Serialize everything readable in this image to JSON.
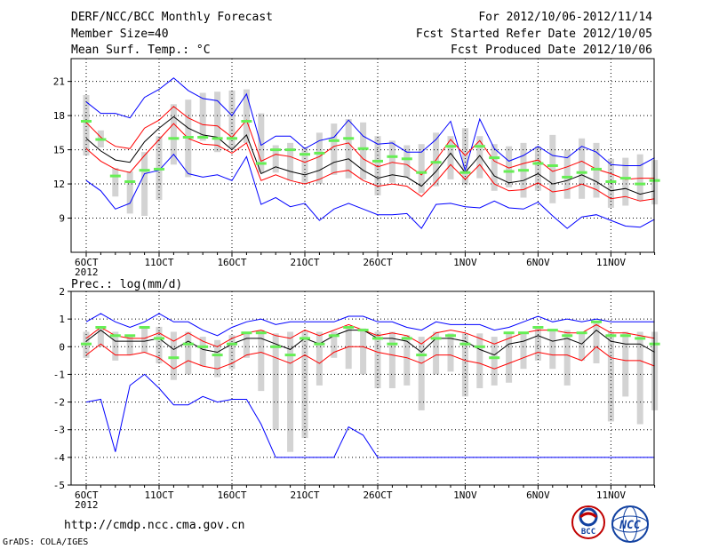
{
  "header": {
    "title": "DERF/NCC/BCC Monthly Forecast",
    "member_size": "Member Size=40",
    "variable": "Mean Surf. Temp.: °C",
    "forecast_period": "For 2012/10/06-2012/11/14",
    "fcst_started": "Fcst Started Refer Date 2012/10/05",
    "fcst_produced": "Fcst Produced Date 2012/10/06"
  },
  "footer": {
    "url": "http://cmdp.ncc.cma.gov.cn",
    "grads_credit": "GrADS: COLA/IGES",
    "logo_bcc": "BCC",
    "logo_ncc": "NCC"
  },
  "colors": {
    "ensemble_mean": "#000000",
    "spread_band": "#ff0000",
    "min_max": "#0000ff",
    "observed_box": "#d3d3d3",
    "median_marker": "#66ee55"
  },
  "chart_data": [
    {
      "type": "line",
      "title": "Mean Surf. Temp.: °C",
      "ylabel": "°C",
      "ylim": [
        6,
        23
      ],
      "yticks": [
        9,
        12,
        15,
        18,
        21
      ],
      "x": [
        1,
        2,
        3,
        4,
        5,
        6,
        7,
        8,
        9,
        10,
        11,
        12,
        13,
        14,
        15,
        16,
        17,
        18,
        19,
        20,
        21,
        22,
        23,
        24,
        25,
        26,
        27,
        28,
        29,
        30,
        31,
        32,
        33,
        34,
        35,
        36,
        37,
        38,
        39,
        40
      ],
      "xtick_labels": [
        {
          "day": 1,
          "label": "6OCT",
          "sub": "2012"
        },
        {
          "day": 6,
          "label": "11OCT"
        },
        {
          "day": 11,
          "label": "16OCT"
        },
        {
          "day": 16,
          "label": "21OCT"
        },
        {
          "day": 21,
          "label": "26OCT"
        },
        {
          "day": 27,
          "label": "1NOV"
        },
        {
          "day": 32,
          "label": "6NOV"
        },
        {
          "day": 37,
          "label": "11NOV"
        }
      ],
      "series": [
        {
          "name": "max",
          "values": [
            19.2,
            18.2,
            18.2,
            17.8,
            19.6,
            20.3,
            21.3,
            20.2,
            19.5,
            19.3,
            18.0,
            19.9,
            15.4,
            16.2,
            16.2,
            15.1,
            15.8,
            16.1,
            17.6,
            16.2,
            15.5,
            15.6,
            14.8,
            14.8,
            15.9,
            17.5,
            13.2,
            17.7,
            15.1,
            14.0,
            14.5,
            15.3,
            14.5,
            14.3,
            15.3,
            14.8,
            13.7,
            13.6,
            13.6,
            14.3
          ]
        },
        {
          "name": "upper",
          "values": [
            17.4,
            16.1,
            15.3,
            15.1,
            16.9,
            17.6,
            18.8,
            17.8,
            17.2,
            17.1,
            16.1,
            17.6,
            14.0,
            14.6,
            14.4,
            13.9,
            14.4,
            15.3,
            15.6,
            14.2,
            13.5,
            13.9,
            13.7,
            12.8,
            14.1,
            15.9,
            14.5,
            15.8,
            14.0,
            13.4,
            13.8,
            14.1,
            13.1,
            13.5,
            14.0,
            13.3,
            12.9,
            12.4,
            12.5,
            12.5
          ]
        },
        {
          "name": "mean",
          "values": [
            16.0,
            14.9,
            14.1,
            13.9,
            15.7,
            16.9,
            17.9,
            16.9,
            16.3,
            16.1,
            15.0,
            16.3,
            12.9,
            13.5,
            13.1,
            12.8,
            13.2,
            13.9,
            14.2,
            13.2,
            12.5,
            12.8,
            12.6,
            11.8,
            13.1,
            14.7,
            13.0,
            14.5,
            12.7,
            12.1,
            12.3,
            12.9,
            12.0,
            12.3,
            12.8,
            12.2,
            11.4,
            11.6,
            11.1,
            11.4
          ]
        },
        {
          "name": "lower",
          "values": [
            15.1,
            14.0,
            13.3,
            13.0,
            14.5,
            15.9,
            17.3,
            16.0,
            15.5,
            15.4,
            14.7,
            15.6,
            12.3,
            12.8,
            12.3,
            12.0,
            12.4,
            13.0,
            13.2,
            12.3,
            11.8,
            12.0,
            11.8,
            10.9,
            12.2,
            13.7,
            12.4,
            13.7,
            12.0,
            11.4,
            11.5,
            12.1,
            11.3,
            11.5,
            12.0,
            11.5,
            10.7,
            10.9,
            10.5,
            10.7
          ]
        },
        {
          "name": "min",
          "values": [
            12.3,
            11.4,
            9.8,
            10.3,
            12.9,
            13.2,
            14.6,
            12.9,
            12.6,
            12.8,
            12.3,
            14.4,
            10.2,
            10.8,
            10.0,
            10.3,
            8.8,
            9.8,
            10.3,
            9.8,
            9.3,
            9.3,
            9.4,
            8.1,
            10.2,
            10.3,
            10.0,
            9.9,
            10.5,
            9.9,
            9.8,
            10.4,
            9.2,
            8.1,
            9.1,
            9.3,
            8.8,
            8.3,
            8.2,
            8.9
          ]
        }
      ],
      "boxes": {
        "name": "observed range",
        "low": [
          14.5,
          15.2,
          10.9,
          9.4,
          9.2,
          10.6,
          13.7,
          12.6,
          15.8,
          14.8,
          15.2,
          15.6,
          13.0,
          13.0,
          12.3,
          12.1,
          12.0,
          12.8,
          12.5,
          12.4,
          11.0,
          12.1,
          12.6,
          11.2,
          11.8,
          12.4,
          11.9,
          12.5,
          11.4,
          11.7,
          10.8,
          11.4,
          10.3,
          10.7,
          10.7,
          10.8,
          9.9,
          10.1,
          10.5,
          10.2
        ],
        "high": [
          19.8,
          16.7,
          13.4,
          13.1,
          14.8,
          16.2,
          19.0,
          19.4,
          20.0,
          20.1,
          20.2,
          20.3,
          18.2,
          15.4,
          15.6,
          15.2,
          16.5,
          17.3,
          17.7,
          17.4,
          16.2,
          15.8,
          15.4,
          15.5,
          16.5,
          16.2,
          16.9,
          16.2,
          15.5,
          15.3,
          15.6,
          15.3,
          16.3,
          15.0,
          16.0,
          15.6,
          14.2,
          14.3,
          14.6,
          14.1
        ]
      },
      "medians": {
        "name": "median",
        "values": [
          17.5,
          15.9,
          12.7,
          12.2,
          13.2,
          13.3,
          16.0,
          16.1,
          16.1,
          16.0,
          16.0,
          17.5,
          13.8,
          15.0,
          15.0,
          14.6,
          14.7,
          15.8,
          16.0,
          15.1,
          14.0,
          14.4,
          14.2,
          13.0,
          13.9,
          15.3,
          13.0,
          15.3,
          14.3,
          13.1,
          13.2,
          13.8,
          13.6,
          12.6,
          13.0,
          13.3,
          12.2,
          12.5,
          12.0,
          12.3
        ]
      }
    },
    {
      "type": "line",
      "title": "Prec.: log(mm/d)",
      "ylabel": "log(mm/d)",
      "ylim": [
        -5,
        2
      ],
      "yticks": [
        -5,
        -4,
        -3,
        -2,
        -1,
        0,
        1,
        2
      ],
      "x": [
        1,
        2,
        3,
        4,
        5,
        6,
        7,
        8,
        9,
        10,
        11,
        12,
        13,
        14,
        15,
        16,
        17,
        18,
        19,
        20,
        21,
        22,
        23,
        24,
        25,
        26,
        27,
        28,
        29,
        30,
        31,
        32,
        33,
        34,
        35,
        36,
        37,
        38,
        39,
        40
      ],
      "xtick_labels": [
        {
          "day": 1,
          "label": "6OCT",
          "sub": "2012"
        },
        {
          "day": 6,
          "label": "11OCT"
        },
        {
          "day": 11,
          "label": "16OCT"
        },
        {
          "day": 16,
          "label": "21OCT"
        },
        {
          "day": 21,
          "label": "26OCT"
        },
        {
          "day": 27,
          "label": "1NOV"
        },
        {
          "day": 32,
          "label": "6NOV"
        },
        {
          "day": 37,
          "label": "11NOV"
        }
      ],
      "series": [
        {
          "name": "max",
          "values": [
            0.9,
            1.2,
            0.9,
            0.7,
            0.9,
            1.2,
            0.9,
            0.9,
            0.6,
            0.4,
            0.7,
            0.9,
            1.0,
            0.8,
            0.9,
            0.9,
            0.9,
            0.9,
            1.1,
            1.1,
            0.9,
            0.9,
            0.7,
            0.6,
            0.9,
            0.8,
            0.8,
            0.8,
            0.6,
            0.7,
            0.9,
            1.1,
            0.9,
            1.0,
            0.9,
            1.0,
            0.9,
            0.9,
            0.9,
            0.9
          ]
        },
        {
          "name": "upper",
          "values": [
            0.3,
            0.7,
            0.4,
            0.3,
            0.3,
            0.5,
            0.2,
            0.5,
            0.2,
            0.0,
            0.3,
            0.5,
            0.6,
            0.4,
            0.3,
            0.6,
            0.4,
            0.6,
            0.8,
            0.6,
            0.4,
            0.5,
            0.4,
            0.1,
            0.5,
            0.6,
            0.5,
            0.3,
            0.1,
            0.3,
            0.5,
            0.6,
            0.6,
            0.5,
            0.5,
            0.8,
            0.5,
            0.5,
            0.4,
            0.3
          ]
        },
        {
          "name": "mean",
          "values": [
            0.2,
            0.6,
            0.2,
            0.2,
            0.2,
            0.3,
            -0.1,
            0.2,
            -0.1,
            -0.2,
            0.1,
            0.3,
            0.3,
            0.1,
            -0.1,
            0.3,
            0.1,
            0.4,
            0.6,
            0.6,
            0.3,
            0.3,
            0.2,
            -0.2,
            0.3,
            0.3,
            0.2,
            -0.1,
            -0.3,
            0.1,
            0.2,
            0.4,
            0.2,
            0.3,
            0.1,
            0.6,
            0.2,
            0.1,
            0.1,
            -0.2
          ]
        },
        {
          "name": "lower",
          "values": [
            -0.3,
            0.1,
            -0.3,
            -0.3,
            -0.2,
            -0.4,
            -0.8,
            -0.5,
            -0.7,
            -0.8,
            -0.6,
            -0.3,
            -0.2,
            -0.4,
            -0.6,
            -0.3,
            -0.6,
            -0.2,
            0.0,
            0.0,
            -0.2,
            -0.3,
            -0.4,
            -0.6,
            -0.3,
            -0.3,
            -0.5,
            -0.6,
            -0.8,
            -0.6,
            -0.4,
            -0.2,
            -0.3,
            -0.3,
            -0.5,
            0.0,
            -0.4,
            -0.5,
            -0.5,
            -0.7
          ]
        },
        {
          "name": "min",
          "values": [
            -2.0,
            -1.9,
            -3.8,
            -1.4,
            -1.0,
            -1.5,
            -2.1,
            -2.1,
            -1.8,
            -2.0,
            -1.9,
            -1.9,
            -2.8,
            -4.0,
            -4.0,
            -4.0,
            -4.0,
            -4.0,
            -2.9,
            -3.2,
            -4.0,
            -4.0,
            -4.0,
            -4.0,
            -4.0,
            -4.0,
            -4.0,
            -4.0,
            -4.0,
            -4.0,
            -4.0,
            -4.0,
            -4.0,
            -4.0,
            -4.0,
            -4.0,
            -4.0,
            -4.0,
            -4.0,
            -4.0
          ]
        }
      ],
      "boxes": {
        "name": "observed range",
        "low": [
          -0.4,
          0.0,
          -0.5,
          -0.3,
          -0.2,
          -0.6,
          -1.2,
          -1.0,
          -0.7,
          -1.1,
          -0.8,
          -0.4,
          -1.6,
          -3.0,
          -3.8,
          -3.3,
          -1.4,
          -0.4,
          -0.8,
          -1.0,
          -1.5,
          -1.5,
          -1.4,
          -2.3,
          -1.0,
          -0.9,
          -1.8,
          -1.5,
          -1.4,
          -1.3,
          -0.8,
          -0.5,
          -0.8,
          -1.4,
          -0.5,
          -0.6,
          -2.7,
          -1.8,
          -2.8,
          -2.3
        ]
      },
      "medians": {
        "name": "median",
        "values": [
          0.1,
          0.7,
          0.4,
          0.4,
          0.7,
          0.3,
          -0.4,
          0.1,
          0.0,
          -0.3,
          0.1,
          0.5,
          0.5,
          0.0,
          -0.3,
          0.3,
          0.1,
          0.4,
          0.7,
          0.6,
          0.3,
          0.1,
          0.3,
          -0.3,
          0.3,
          0.4,
          0.1,
          0.0,
          -0.4,
          0.5,
          0.5,
          0.7,
          0.6,
          0.4,
          0.5,
          0.9,
          0.4,
          0.4,
          0.3,
          0.1
        ]
      }
    }
  ]
}
